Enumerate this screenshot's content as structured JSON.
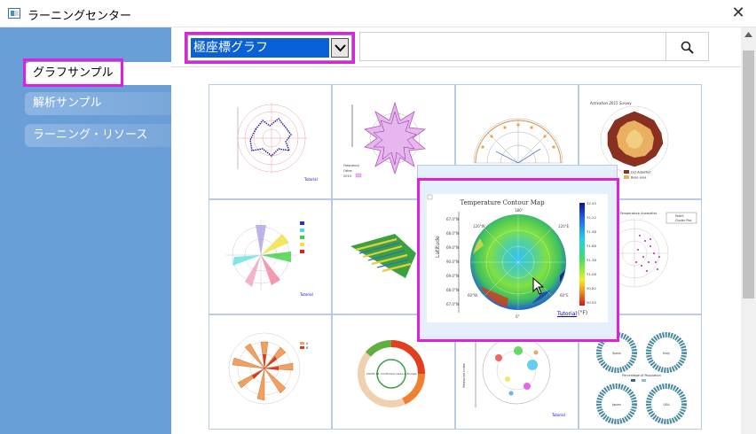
{
  "window": {
    "title": "ラーニングセンター",
    "close_glyph": "✕"
  },
  "sidebar": {
    "items": [
      {
        "label": "グラフサンプル",
        "active": true
      },
      {
        "label": "解析サンプル",
        "active": false
      },
      {
        "label": "ラーニング・リソース",
        "active": false
      }
    ]
  },
  "toolbar": {
    "category_value": "極座標グラフ",
    "search_value": "",
    "search_icon": "search-icon"
  },
  "gallery": {
    "thumbnails": [
      {
        "tutorial": "Tutorial"
      },
      {
        "legend": [
          "Frequency",
          "Other",
          "2019"
        ]
      },
      {},
      {
        "title": "Activation 2015 Survey",
        "legend": [
          "Oct Adjusted",
          "Base area"
        ]
      },
      {
        "tutorial": "Tutorial"
      },
      {},
      {
        "legend": [
          "Polar1",
          "Cluster Plot"
        ]
      },
      {
        "legend": [
          "A",
          "B"
        ]
      },
      {
        "title": "COVID-19: Confirmed cases in Europe"
      },
      {
        "ylabel": "Measured Index",
        "tutorial": "Tutorial"
      },
      {
        "labels": [
          "Spain",
          "Italy",
          "Japan",
          "USA"
        ],
        "subtitle": "Percentage of Population"
      }
    ]
  },
  "popup": {
    "title": "Temperature Contour Map",
    "ylabel": "Latitude",
    "tutorial": "Tutorial",
    "unit": "(°F)",
    "angle_labels": [
      "180°",
      "120°W",
      "120°E",
      "60°W",
      "60°E",
      "0°"
    ],
    "lat_ticks": [
      "67.0°N",
      "68.0°N",
      "69.0°N",
      "90.0°N",
      "69.0°N",
      "68.0°N",
      "67.0°N"
    ],
    "scale_ticks": [
      "32.45",
      "32.12",
      "31.98",
      "31.68",
      "31.38",
      "31.08",
      "30.82",
      "30.55"
    ]
  },
  "colors": {
    "sidebar_bg": "#6a9ed6",
    "highlight": "#e020e0",
    "combo_selection": "#0a60d6"
  }
}
